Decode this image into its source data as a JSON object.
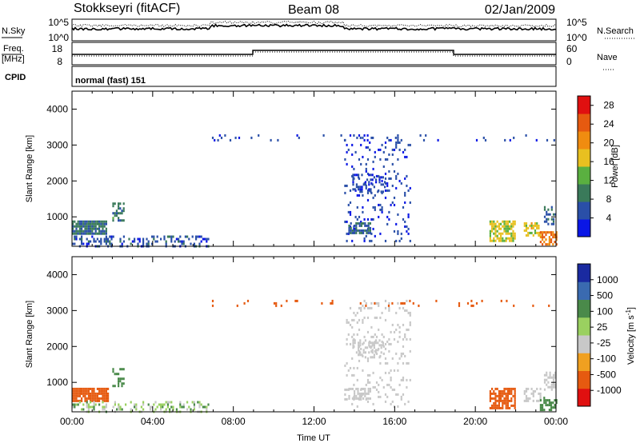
{
  "header": {
    "station": "Stokkseyri (fitACF)",
    "beam": "Beam 08",
    "date": "02/Jan/2009"
  },
  "strip_nsky": {
    "label": "N.Sky",
    "tick_top": "10^5",
    "tick_bottom": "10^0",
    "right_label": "N.Search",
    "right_tick_top": "10^5",
    "right_tick_bottom": "10^0"
  },
  "strip_freq": {
    "label_line1": "Freq.",
    "label_line2": "[MHz]",
    "tick_top": "18",
    "tick_bottom": "8",
    "right_label": "Nave",
    "right_tick_top": "60",
    "right_tick_bottom": "0"
  },
  "cpid": {
    "label": "CPID",
    "value": "normal (fast) 151"
  },
  "colors": {
    "power": [
      "#0a16e6",
      "#2a4fa8",
      "#3a7a5a",
      "#5ab040",
      "#e8c020",
      "#f08c10",
      "#e65a10",
      "#e01010"
    ],
    "velocity": [
      "#e01010",
      "#e65a10",
      "#f0a020",
      "#c8c8c8",
      "#9ad060",
      "#4a8a4a",
      "#3a6ab0",
      "#1a2aa0"
    ]
  },
  "chart_data": [
    {
      "type": "heatmap",
      "name": "power-panel",
      "ylabel": "Slant Range [km]",
      "ylim": [
        180,
        4500
      ],
      "yticks": [
        "1000",
        "2000",
        "3000",
        "4000"
      ],
      "xlim": [
        0,
        24
      ],
      "colorbar": {
        "label": "Power [dB]",
        "ticks": [
          "4",
          "8",
          "12",
          "16",
          "20",
          "24",
          "28"
        ],
        "range": [
          0,
          30
        ]
      },
      "features": [
        {
          "t0": 0.0,
          "t1": 1.7,
          "r0": 550,
          "r1": 900,
          "value": 9,
          "density": 0.9
        },
        {
          "t0": 0.0,
          "t1": 6.8,
          "r0": 200,
          "r1": 480,
          "value": 6,
          "density": 0.35
        },
        {
          "t0": 2.0,
          "t1": 2.6,
          "r0": 900,
          "r1": 1400,
          "value": 10,
          "density": 0.5
        },
        {
          "t0": 13.5,
          "t1": 16.8,
          "r0": 300,
          "r1": 3300,
          "value": 5,
          "density": 0.12
        },
        {
          "t0": 13.7,
          "t1": 14.8,
          "r0": 550,
          "r1": 850,
          "value": 8,
          "density": 0.7
        },
        {
          "t0": 13.9,
          "t1": 15.5,
          "r0": 1700,
          "r1": 2200,
          "value": 5,
          "density": 0.4
        },
        {
          "t0": 20.7,
          "t1": 22.0,
          "r0": 300,
          "r1": 900,
          "value": 17,
          "density": 0.75
        },
        {
          "t0": 22.4,
          "t1": 23.2,
          "r0": 500,
          "r1": 850,
          "value": 18,
          "density": 0.5
        },
        {
          "t0": 23.2,
          "t1": 24.0,
          "r0": 250,
          "r1": 600,
          "value": 24,
          "density": 0.6
        },
        {
          "t0": 23.4,
          "t1": 24.0,
          "r0": 800,
          "r1": 1300,
          "value": 7,
          "density": 0.45
        },
        {
          "t0": 6.5,
          "t1": 23.9,
          "r0": 3100,
          "r1": 3300,
          "value": 5,
          "density": 0.06
        }
      ]
    },
    {
      "type": "heatmap",
      "name": "velocity-panel",
      "xlabel": "Time UT",
      "xticks": [
        "00:00",
        "04:00",
        "08:00",
        "12:00",
        "16:00",
        "20:00",
        "00:00"
      ],
      "ylabel": "Slant Range [km]",
      "ylim": [
        180,
        4500
      ],
      "yticks": [
        "1000",
        "2000",
        "3000",
        "4000"
      ],
      "xlim": [
        0,
        24
      ],
      "colorbar": {
        "label": "Velocity [m s^-1]",
        "ticks": [
          "1000",
          "500",
          "100",
          "25",
          "-25",
          "-100",
          "-500",
          "-1000"
        ]
      },
      "features": [
        {
          "t0": 0.0,
          "t1": 1.8,
          "r0": 450,
          "r1": 850,
          "value": -300,
          "density": 0.9
        },
        {
          "t0": 0.0,
          "t1": 6.8,
          "r0": 200,
          "r1": 480,
          "value": 60,
          "density": 0.35
        },
        {
          "t0": 2.0,
          "t1": 2.6,
          "r0": 900,
          "r1": 1400,
          "value": 200,
          "density": 0.45
        },
        {
          "t0": 13.5,
          "t1": 16.8,
          "r0": 300,
          "r1": 3300,
          "value": 0,
          "density": 0.12
        },
        {
          "t0": 13.7,
          "t1": 14.8,
          "r0": 550,
          "r1": 850,
          "value": 0,
          "density": 0.7
        },
        {
          "t0": 13.9,
          "t1": 15.5,
          "r0": 1700,
          "r1": 2200,
          "value": 0,
          "density": 0.4
        },
        {
          "t0": 20.7,
          "t1": 22.0,
          "r0": 300,
          "r1": 850,
          "value": -300,
          "density": 0.75
        },
        {
          "t0": 22.4,
          "t1": 23.2,
          "r0": 500,
          "r1": 850,
          "value": 0,
          "density": 0.5
        },
        {
          "t0": 23.2,
          "t1": 24.0,
          "r0": 250,
          "r1": 600,
          "value": 300,
          "density": 0.6
        },
        {
          "t0": 23.4,
          "t1": 24.0,
          "r0": 800,
          "r1": 1300,
          "value": 0,
          "density": 0.45
        },
        {
          "t0": 6.5,
          "t1": 23.9,
          "r0": 3100,
          "r1": 3300,
          "value": -200,
          "density": 0.06
        }
      ]
    }
  ]
}
